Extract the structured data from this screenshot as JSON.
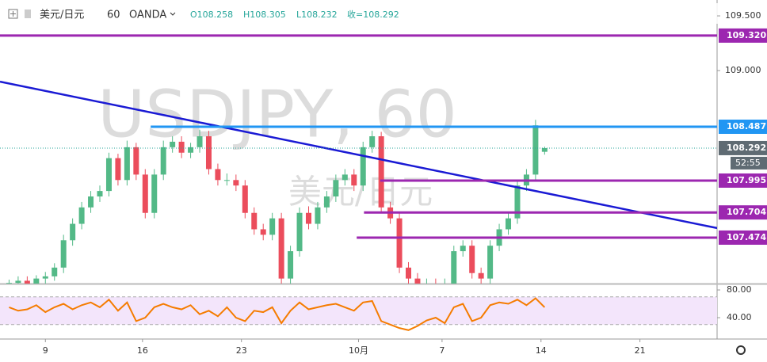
{
  "chart_data": [
    {
      "type": "candlestick",
      "symbol": "美元/日元",
      "interval": "60",
      "broker": "OANDA",
      "ohlc_labels": [
        "O108.258",
        "H108.305",
        "L108.232",
        "收=108.292"
      ],
      "watermark": "USDJPY, 60",
      "watermark_sub": "美元/日元",
      "x": [
        0,
        1,
        2,
        3,
        4,
        5,
        6,
        7,
        8,
        9,
        10,
        11,
        12,
        13,
        14,
        15,
        16,
        17,
        18,
        19,
        20,
        21,
        22,
        23,
        24,
        25,
        26,
        27,
        28,
        29,
        30,
        31,
        32,
        33,
        34,
        35,
        36,
        37,
        38,
        39,
        40,
        41,
        42,
        43,
        44,
        45,
        46,
        47,
        48,
        49,
        50,
        51,
        52,
        53,
        54,
        55,
        56,
        57,
        58,
        59
      ],
      "open": [
        107.02,
        107.06,
        107.08,
        107.05,
        107.1,
        107.12,
        107.2,
        107.45,
        107.6,
        107.75,
        107.85,
        107.9,
        108.2,
        108.0,
        108.3,
        108.05,
        107.7,
        108.05,
        108.3,
        108.35,
        108.25,
        108.3,
        108.4,
        108.1,
        108.0,
        108.0,
        107.95,
        107.7,
        107.55,
        107.5,
        107.65,
        107.1,
        107.35,
        107.7,
        107.6,
        107.75,
        107.85,
        108.0,
        108.05,
        107.95,
        108.3,
        108.4,
        107.75,
        107.65,
        107.2,
        107.1,
        107.0,
        107.05,
        106.95,
        107.05,
        107.35,
        107.4,
        107.15,
        107.1,
        107.4,
        107.55,
        107.65,
        107.95,
        108.05,
        108.258
      ],
      "high": [
        107.09,
        107.12,
        107.12,
        107.13,
        107.16,
        107.24,
        107.5,
        107.65,
        107.8,
        107.9,
        107.95,
        108.25,
        108.24,
        108.36,
        108.34,
        108.1,
        108.1,
        108.36,
        108.4,
        108.4,
        108.34,
        108.46,
        108.45,
        108.15,
        108.06,
        108.05,
        108.0,
        107.75,
        107.6,
        107.7,
        107.7,
        107.4,
        107.75,
        107.76,
        107.8,
        107.9,
        108.05,
        108.1,
        108.1,
        108.35,
        108.45,
        108.44,
        107.8,
        107.7,
        107.25,
        107.15,
        107.1,
        107.1,
        107.1,
        107.4,
        107.45,
        107.45,
        107.2,
        107.45,
        107.6,
        107.7,
        108.0,
        108.1,
        108.55,
        108.305
      ],
      "low": [
        106.98,
        107.01,
        107.01,
        107.0,
        107.05,
        107.08,
        107.15,
        107.4,
        107.55,
        107.7,
        107.8,
        107.85,
        107.95,
        107.95,
        108.0,
        107.65,
        107.65,
        108.0,
        108.25,
        108.2,
        108.2,
        108.25,
        108.05,
        107.95,
        107.95,
        107.9,
        107.65,
        107.5,
        107.45,
        107.45,
        107.05,
        107.05,
        107.3,
        107.55,
        107.55,
        107.7,
        107.8,
        107.95,
        107.9,
        107.9,
        108.25,
        107.7,
        107.6,
        107.15,
        107.05,
        106.95,
        106.95,
        106.9,
        106.9,
        107.0,
        107.3,
        107.1,
        107.05,
        107.05,
        107.35,
        107.5,
        107.6,
        107.9,
        108.0,
        108.232
      ],
      "close": [
        107.06,
        107.08,
        107.05,
        107.1,
        107.12,
        107.2,
        107.45,
        107.6,
        107.75,
        107.85,
        107.9,
        108.2,
        108.0,
        108.3,
        108.05,
        107.7,
        108.05,
        108.3,
        108.35,
        108.25,
        108.3,
        108.4,
        108.1,
        108.0,
        108.0,
        107.95,
        107.7,
        107.55,
        107.5,
        107.65,
        107.1,
        107.35,
        107.7,
        107.6,
        107.75,
        107.85,
        108.0,
        108.05,
        107.95,
        108.3,
        108.4,
        107.75,
        107.65,
        107.2,
        107.1,
        107.0,
        107.05,
        106.95,
        107.05,
        107.35,
        107.4,
        107.15,
        107.1,
        107.4,
        107.55,
        107.65,
        107.95,
        108.05,
        108.5,
        108.292
      ],
      "up_color": "#53b987",
      "down_color": "#eb4d5c",
      "xlim": [
        -1,
        78
      ],
      "xticks": [
        {
          "value": 4,
          "label": "9"
        },
        {
          "value": 14.7,
          "label": "16"
        },
        {
          "value": 25.6,
          "label": "23"
        },
        {
          "value": 38.5,
          "label": "10月"
        },
        {
          "value": 47.7,
          "label": "7"
        },
        {
          "value": 58.6,
          "label": "14"
        },
        {
          "value": 69.5,
          "label": "21"
        }
      ],
      "ylim": [
        107.054,
        109.645
      ],
      "yticks": [
        {
          "value": 109.5,
          "label": "109.500"
        },
        {
          "value": 109,
          "label": "109.000"
        }
      ],
      "levels": [
        {
          "value": 109.32,
          "label": "109.320",
          "color": "#9c27b0",
          "x_start": -1
        },
        {
          "value": 108.487,
          "label": "108.487",
          "color": "#2196f3",
          "x_start": 15.6
        },
        {
          "value": 107.995,
          "label": "107.995",
          "color": "#9c27b0",
          "x_start": 40.9
        },
        {
          "value": 107.704,
          "label": "107.704",
          "color": "#9c27b0",
          "x_start": 39.1
        },
        {
          "value": 107.474,
          "label": "107.474",
          "color": "#9c27b0",
          "x_start": 38.3
        }
      ],
      "trendline": {
        "x": [
          -1,
          78
        ],
        "y": [
          108.899,
          107.561
        ],
        "color": "#1a1ad4"
      },
      "last_price": {
        "value": 108.292,
        "label": "108.292"
      },
      "countdown": "52:55"
    },
    {
      "type": "line",
      "x": [
        0,
        1,
        2,
        3,
        4,
        5,
        6,
        7,
        8,
        9,
        10,
        11,
        12,
        13,
        14,
        15,
        16,
        17,
        18,
        19,
        20,
        21,
        22,
        23,
        24,
        25,
        26,
        27,
        28,
        29,
        30,
        31,
        32,
        33,
        34,
        35,
        36,
        37,
        38,
        39,
        40,
        41,
        42,
        43,
        44,
        45,
        46,
        47,
        48,
        49,
        50,
        51,
        52,
        53,
        54,
        55,
        56,
        57,
        58,
        59
      ],
      "series": [
        {
          "color": "#f57c00",
          "values": [
            55,
            50,
            52,
            58,
            48,
            55,
            60,
            52,
            58,
            62,
            55,
            66,
            50,
            62,
            35,
            40,
            55,
            60,
            55,
            52,
            58,
            45,
            50,
            42,
            55,
            40,
            35,
            50,
            48,
            55,
            32,
            50,
            62,
            52,
            55,
            58,
            60,
            55,
            50,
            62,
            64,
            35,
            30,
            25,
            22,
            28,
            36,
            40,
            32,
            55,
            60,
            35,
            40,
            58,
            62,
            60,
            66,
            58,
            68,
            55
          ]
        }
      ],
      "xlim": [
        -1,
        78
      ],
      "ylim": [
        10.3,
        86.9
      ],
      "yticks": [
        {
          "value": 80,
          "label": "80.00"
        },
        {
          "value": 40,
          "label": "40.00"
        }
      ],
      "band": [
        30,
        70
      ],
      "band_color": "#f3e5fb"
    }
  ]
}
